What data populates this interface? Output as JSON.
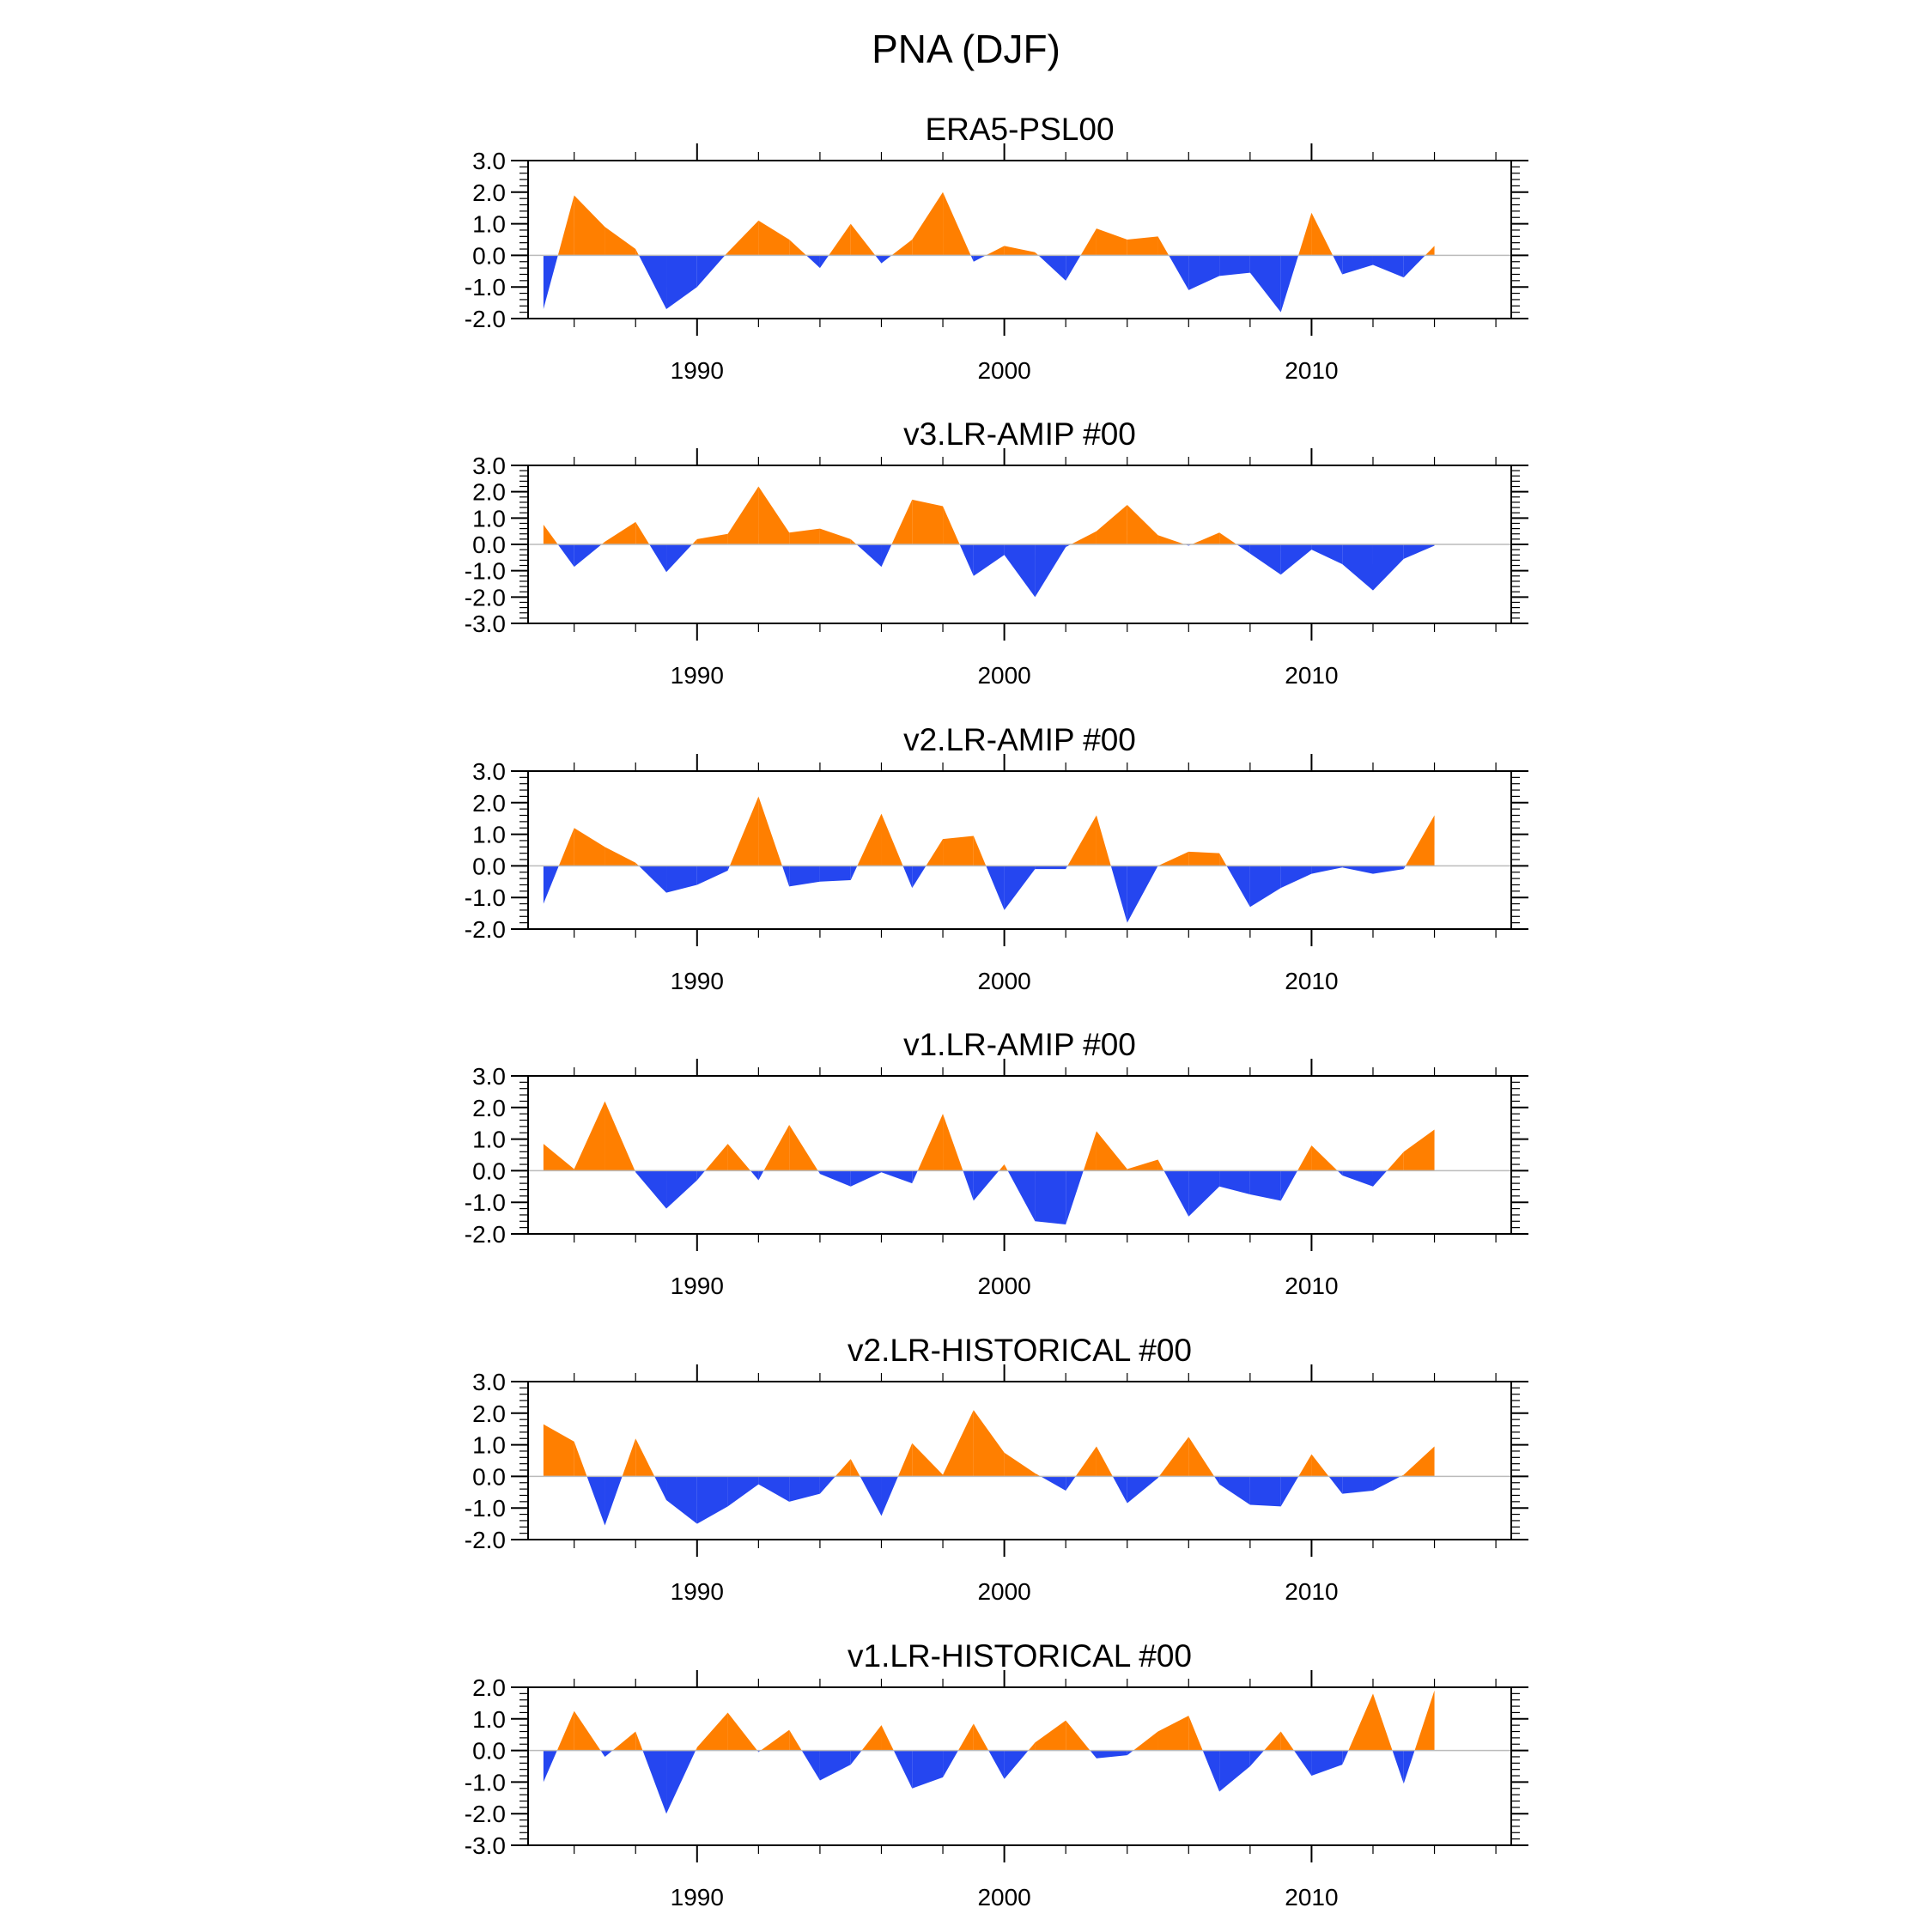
{
  "main_title": "PNA (DJF)",
  "colors": {
    "positive": "#ff7f00",
    "negative": "#2546f0",
    "axis": "#000000",
    "zero_line": "#bbbbbb"
  },
  "chart_data": [
    {
      "type": "area",
      "title": "ERA5-PSL00",
      "ylim": [
        -2,
        3
      ],
      "yticks": [
        "3.0",
        "2.0",
        "1.0",
        "0.0",
        "-1.0",
        "-2.0"
      ],
      "xlim": [
        1984.5,
        2016.5
      ],
      "xticks": [
        "1990",
        "2000",
        "2010"
      ],
      "x": [
        1985,
        1986,
        1987,
        1988,
        1989,
        1990,
        1991,
        1992,
        1993,
        1994,
        1995,
        1996,
        1997,
        1998,
        1999,
        2000,
        2001,
        2002,
        2003,
        2004,
        2005,
        2006,
        2007,
        2008,
        2009,
        2010,
        2011,
        2012,
        2013,
        2014
      ],
      "values": [
        -1.7,
        1.9,
        0.9,
        0.2,
        -1.7,
        -1.0,
        0.1,
        1.1,
        0.5,
        -0.4,
        1.0,
        -0.25,
        0.5,
        2.0,
        -0.2,
        0.3,
        0.1,
        -0.8,
        0.85,
        0.5,
        0.6,
        -1.1,
        -0.65,
        -0.55,
        -1.8,
        1.35,
        -0.6,
        -0.3,
        -0.7,
        0.3
      ]
    },
    {
      "type": "area",
      "title": "v3.LR-AMIP  #00",
      "ylim": [
        -3,
        3
      ],
      "yticks": [
        "3.0",
        "2.0",
        "1.0",
        "0.0",
        "-1.0",
        "-2.0",
        "-3.0"
      ],
      "xlim": [
        1984.5,
        2016.5
      ],
      "xticks": [
        "1990",
        "2000",
        "2010"
      ],
      "x": [
        1985,
        1986,
        1987,
        1988,
        1989,
        1990,
        1991,
        1992,
        1993,
        1994,
        1995,
        1996,
        1997,
        1998,
        1999,
        2000,
        2001,
        2002,
        2003,
        2004,
        2005,
        2006,
        2007,
        2008,
        2009,
        2010,
        2011,
        2012,
        2013,
        2014
      ],
      "values": [
        0.75,
        -0.85,
        0.1,
        0.85,
        -1.05,
        0.2,
        0.4,
        2.2,
        0.45,
        0.6,
        0.2,
        -0.85,
        1.7,
        1.45,
        -1.2,
        -0.4,
        -2.0,
        -0.1,
        0.5,
        1.5,
        0.35,
        -0.05,
        0.45,
        -0.35,
        -1.15,
        -0.2,
        -0.75,
        -1.75,
        -0.55,
        -0.05
      ]
    },
    {
      "type": "area",
      "title": "v2.LR-AMIP  #00",
      "ylim": [
        -2,
        3
      ],
      "yticks": [
        "3.0",
        "2.0",
        "1.0",
        "0.0",
        "-1.0",
        "-2.0"
      ],
      "xlim": [
        1984.5,
        2016.5
      ],
      "xticks": [
        "1990",
        "2000",
        "2010"
      ],
      "x": [
        1985,
        1986,
        1987,
        1988,
        1989,
        1990,
        1991,
        1992,
        1993,
        1994,
        1995,
        1996,
        1997,
        1998,
        1999,
        2000,
        2001,
        2002,
        2003,
        2004,
        2005,
        2006,
        2007,
        2008,
        2009,
        2010,
        2011,
        2012,
        2013,
        2014
      ],
      "values": [
        -1.2,
        1.2,
        0.6,
        0.1,
        -0.85,
        -0.6,
        -0.15,
        2.2,
        -0.65,
        -0.5,
        -0.45,
        1.65,
        -0.7,
        0.85,
        0.95,
        -1.4,
        -0.1,
        -0.1,
        1.6,
        -1.8,
        0.0,
        0.45,
        0.4,
        -1.3,
        -0.7,
        -0.25,
        -0.05,
        -0.25,
        -0.1,
        1.6
      ]
    },
    {
      "type": "area",
      "title": "v1.LR-AMIP  #00",
      "ylim": [
        -2,
        3
      ],
      "yticks": [
        "3.0",
        "2.0",
        "1.0",
        "0.0",
        "-1.0",
        "-2.0"
      ],
      "xlim": [
        1984.5,
        2016.5
      ],
      "xticks": [
        "1990",
        "2000",
        "2010"
      ],
      "x": [
        1985,
        1986,
        1987,
        1988,
        1989,
        1990,
        1991,
        1992,
        1993,
        1994,
        1995,
        1996,
        1997,
        1998,
        1999,
        2000,
        2001,
        2002,
        2003,
        2004,
        2005,
        2006,
        2007,
        2008,
        2009,
        2010,
        2011,
        2012,
        2013,
        2014
      ],
      "values": [
        0.85,
        0.05,
        2.2,
        -0.05,
        -1.2,
        -0.3,
        0.85,
        -0.3,
        1.45,
        -0.1,
        -0.5,
        -0.05,
        -0.4,
        1.8,
        -0.95,
        0.2,
        -1.6,
        -1.7,
        1.25,
        0.05,
        0.35,
        -1.45,
        -0.5,
        -0.75,
        -0.95,
        0.8,
        -0.15,
        -0.5,
        0.6,
        1.3
      ]
    },
    {
      "type": "area",
      "title": "v2.LR-HISTORICAL  #00",
      "ylim": [
        -2,
        3
      ],
      "yticks": [
        "3.0",
        "2.0",
        "1.0",
        "0.0",
        "-1.0",
        "-2.0"
      ],
      "xlim": [
        1984.5,
        2016.5
      ],
      "xticks": [
        "1990",
        "2000",
        "2010"
      ],
      "x": [
        1985,
        1986,
        1987,
        1988,
        1989,
        1990,
        1991,
        1992,
        1993,
        1994,
        1995,
        1996,
        1997,
        1998,
        1999,
        2000,
        2001,
        2002,
        2003,
        2004,
        2005,
        2006,
        2007,
        2008,
        2009,
        2010,
        2011,
        2012,
        2013,
        2014
      ],
      "values": [
        1.65,
        1.1,
        -1.55,
        1.2,
        -0.75,
        -1.5,
        -0.95,
        -0.25,
        -0.8,
        -0.55,
        0.55,
        -1.25,
        1.05,
        0.05,
        2.1,
        0.75,
        0.1,
        -0.45,
        0.95,
        -0.85,
        -0.05,
        1.25,
        -0.25,
        -0.9,
        -0.95,
        0.7,
        -0.55,
        -0.45,
        0.05,
        0.95
      ]
    },
    {
      "type": "area",
      "title": "v1.LR-HISTORICAL  #00",
      "ylim": [
        -3,
        2
      ],
      "yticks": [
        "2.0",
        "1.0",
        "0.0",
        "-1.0",
        "-2.0",
        "-3.0"
      ],
      "xlim": [
        1984.5,
        2016.5
      ],
      "xticks": [
        "1990",
        "2000",
        "2010"
      ],
      "x": [
        1985,
        1986,
        1987,
        1988,
        1989,
        1990,
        1991,
        1992,
        1993,
        1994,
        1995,
        1996,
        1997,
        1998,
        1999,
        2000,
        2001,
        2002,
        2003,
        2004,
        2005,
        2006,
        2007,
        2008,
        2009,
        2010,
        2011,
        2012,
        2013,
        2014
      ],
      "values": [
        -1.0,
        1.25,
        -0.2,
        0.6,
        -2.0,
        0.1,
        1.2,
        -0.05,
        0.65,
        -0.95,
        -0.45,
        0.8,
        -1.2,
        -0.85,
        0.85,
        -0.9,
        0.25,
        0.95,
        -0.25,
        -0.15,
        0.6,
        1.1,
        -1.3,
        -0.5,
        0.6,
        -0.8,
        -0.45,
        1.8,
        -1.05,
        1.9
      ]
    }
  ]
}
